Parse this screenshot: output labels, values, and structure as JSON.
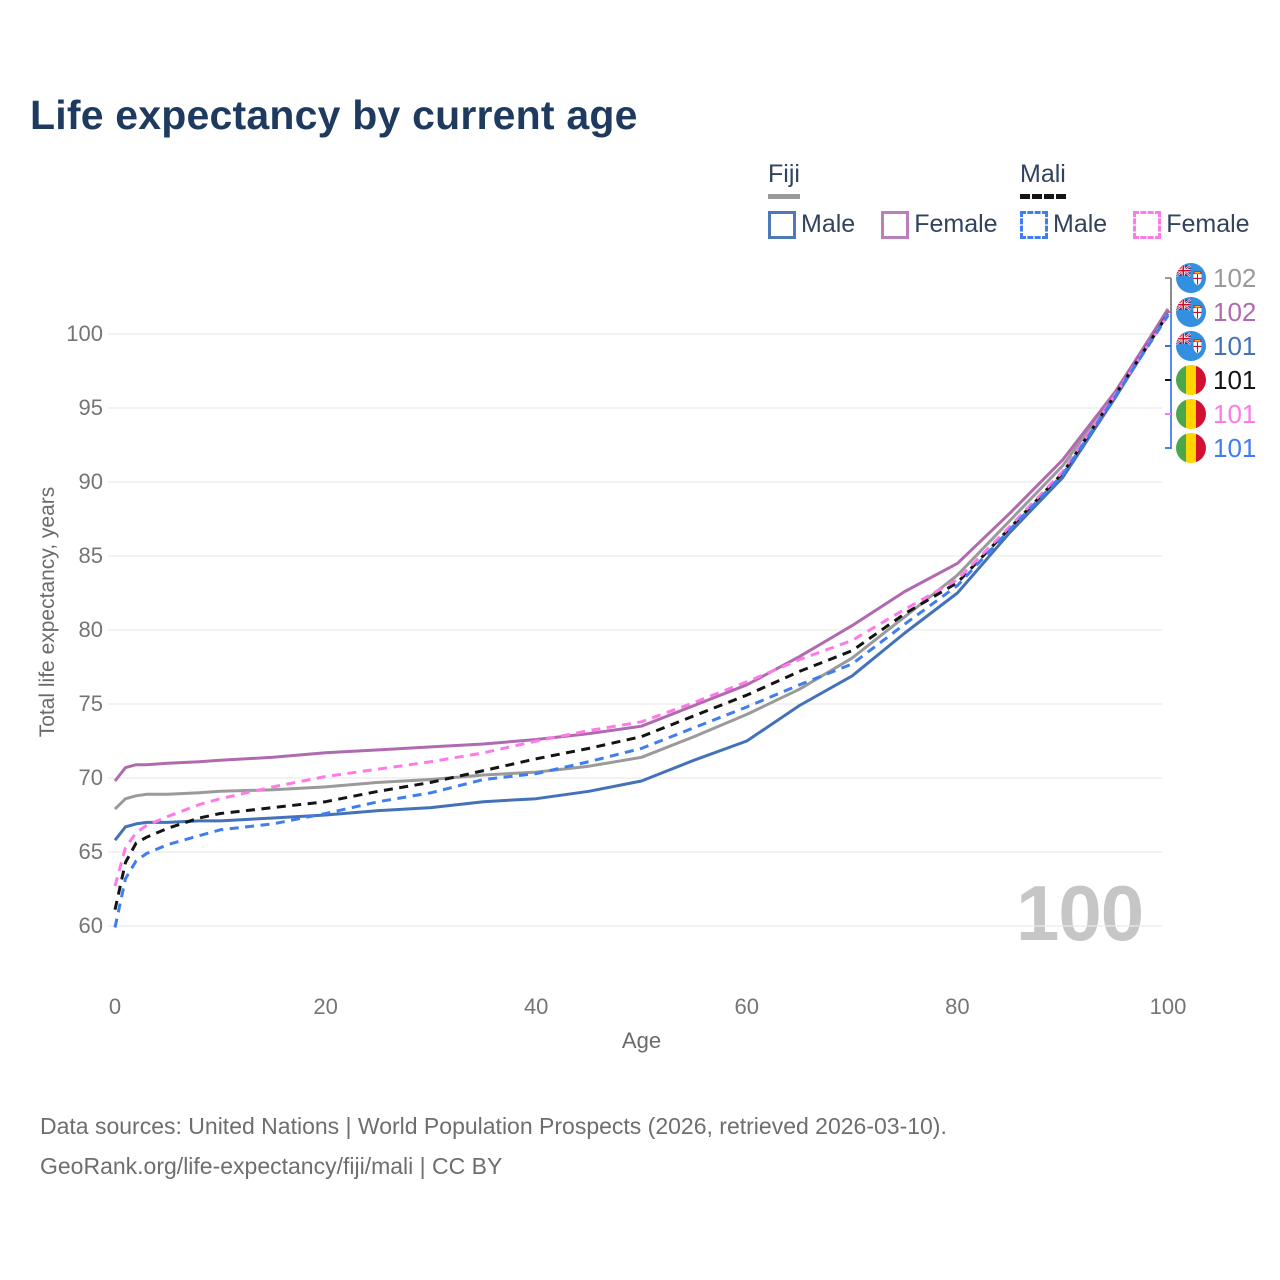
{
  "title": "Life expectancy by current age",
  "legend": {
    "groups": [
      {
        "title": "Fiji",
        "underline_style": "solid",
        "underline_color": "#9a9a9a",
        "items": [
          {
            "label": "Male",
            "color": "#4e79b8",
            "line_style": "solid"
          },
          {
            "label": "Female",
            "color": "#bb7fbb",
            "line_style": "solid"
          }
        ]
      },
      {
        "title": "Mali",
        "underline_style": "dashed",
        "underline_color": "#141414",
        "items": [
          {
            "label": "Male",
            "color": "#3f7df0",
            "line_style": "dashed"
          },
          {
            "label": "Female",
            "color": "#ff7ae8",
            "line_style": "dashed"
          }
        ]
      }
    ]
  },
  "chart_data": {
    "type": "line",
    "title": "Life expectancy by current age",
    "xlabel": "Age",
    "ylabel": "Total life expectancy, years",
    "xlim": [
      0,
      100
    ],
    "ylim": [
      58,
      103
    ],
    "xticks": [
      0,
      20,
      40,
      60,
      80,
      100
    ],
    "yticks": [
      60,
      65,
      70,
      75,
      80,
      85,
      90,
      95,
      100
    ],
    "grid": "horizontal",
    "legend_position": "top-right",
    "x": [
      0,
      1,
      2,
      3,
      5,
      8,
      10,
      15,
      20,
      25,
      30,
      35,
      40,
      45,
      50,
      55,
      60,
      65,
      70,
      75,
      80,
      85,
      90,
      95,
      100
    ],
    "series": [
      {
        "name": "Fiji",
        "sex": "both",
        "country": "Fiji",
        "style": "solid",
        "color": "#9a9a9a",
        "flag": "fiji",
        "end_label": "102",
        "values": [
          67.9,
          68.6,
          68.8,
          68.9,
          68.9,
          69.0,
          69.1,
          69.2,
          69.4,
          69.7,
          69.9,
          70.2,
          70.4,
          70.8,
          71.4,
          72.8,
          74.3,
          76.0,
          78.1,
          80.9,
          83.7,
          87.4,
          91.1,
          96.0,
          101.7
        ]
      },
      {
        "name": "Fiji Female",
        "sex": "female",
        "country": "Fiji",
        "style": "solid",
        "color": "#b06ab0",
        "flag": "fiji",
        "end_label": "102",
        "values": [
          69.8,
          70.7,
          70.9,
          70.9,
          71.0,
          71.1,
          71.2,
          71.4,
          71.7,
          71.9,
          72.1,
          72.3,
          72.6,
          73.0,
          73.5,
          74.9,
          76.3,
          78.2,
          80.3,
          82.6,
          84.5,
          87.9,
          91.5,
          96.1,
          101.65
        ]
      },
      {
        "name": "Fiji Male",
        "sex": "male",
        "country": "Fiji",
        "style": "solid",
        "color": "#4472b8",
        "flag": "fiji",
        "end_label": "101",
        "values": [
          65.8,
          66.7,
          66.9,
          67.0,
          67.0,
          67.1,
          67.1,
          67.3,
          67.5,
          67.8,
          68.0,
          68.4,
          68.6,
          69.1,
          69.8,
          71.2,
          72.5,
          74.9,
          76.9,
          79.8,
          82.5,
          86.6,
          90.3,
          95.7,
          101.4
        ]
      },
      {
        "name": "Mali",
        "sex": "both",
        "country": "Mali",
        "style": "dashed",
        "color": "#141414",
        "flag": "mali",
        "end_label": "101",
        "values": [
          61.1,
          64.3,
          65.6,
          66.0,
          66.6,
          67.3,
          67.6,
          68.0,
          68.4,
          69.1,
          69.7,
          70.5,
          71.3,
          72.0,
          72.8,
          74.2,
          75.6,
          77.2,
          78.6,
          81.1,
          83.2,
          86.9,
          90.6,
          95.9,
          101.35
        ]
      },
      {
        "name": "Mali Female",
        "sex": "female",
        "country": "Mali",
        "style": "dashed",
        "color": "#ff7ae8",
        "flag": "mali",
        "end_label": "101",
        "values": [
          62.7,
          65.3,
          66.3,
          66.8,
          67.4,
          68.2,
          68.6,
          69.4,
          70.1,
          70.6,
          71.1,
          71.7,
          72.5,
          73.2,
          73.8,
          75.1,
          76.5,
          78.0,
          79.3,
          81.4,
          83.4,
          87.0,
          90.7,
          95.9,
          101.3
        ]
      },
      {
        "name": "Mali Male",
        "sex": "male",
        "country": "Mali",
        "style": "dashed",
        "color": "#3f7df0",
        "flag": "mali",
        "end_label": "101",
        "values": [
          59.9,
          63.2,
          64.4,
          64.9,
          65.5,
          66.1,
          66.5,
          66.9,
          67.6,
          68.4,
          69.0,
          69.9,
          70.3,
          71.1,
          72.0,
          73.4,
          74.8,
          76.3,
          77.7,
          80.4,
          83.0,
          86.8,
          90.5,
          95.8,
          101.25
        ]
      }
    ]
  },
  "watermark": {
    "text": "100"
  },
  "footer": {
    "line1": "Data sources: United Nations | World Population Prospects (2026, retrieved 2026-03-10).",
    "line2": "GeoRank.org/life-expectancy/fiji/mali | CC BY"
  }
}
